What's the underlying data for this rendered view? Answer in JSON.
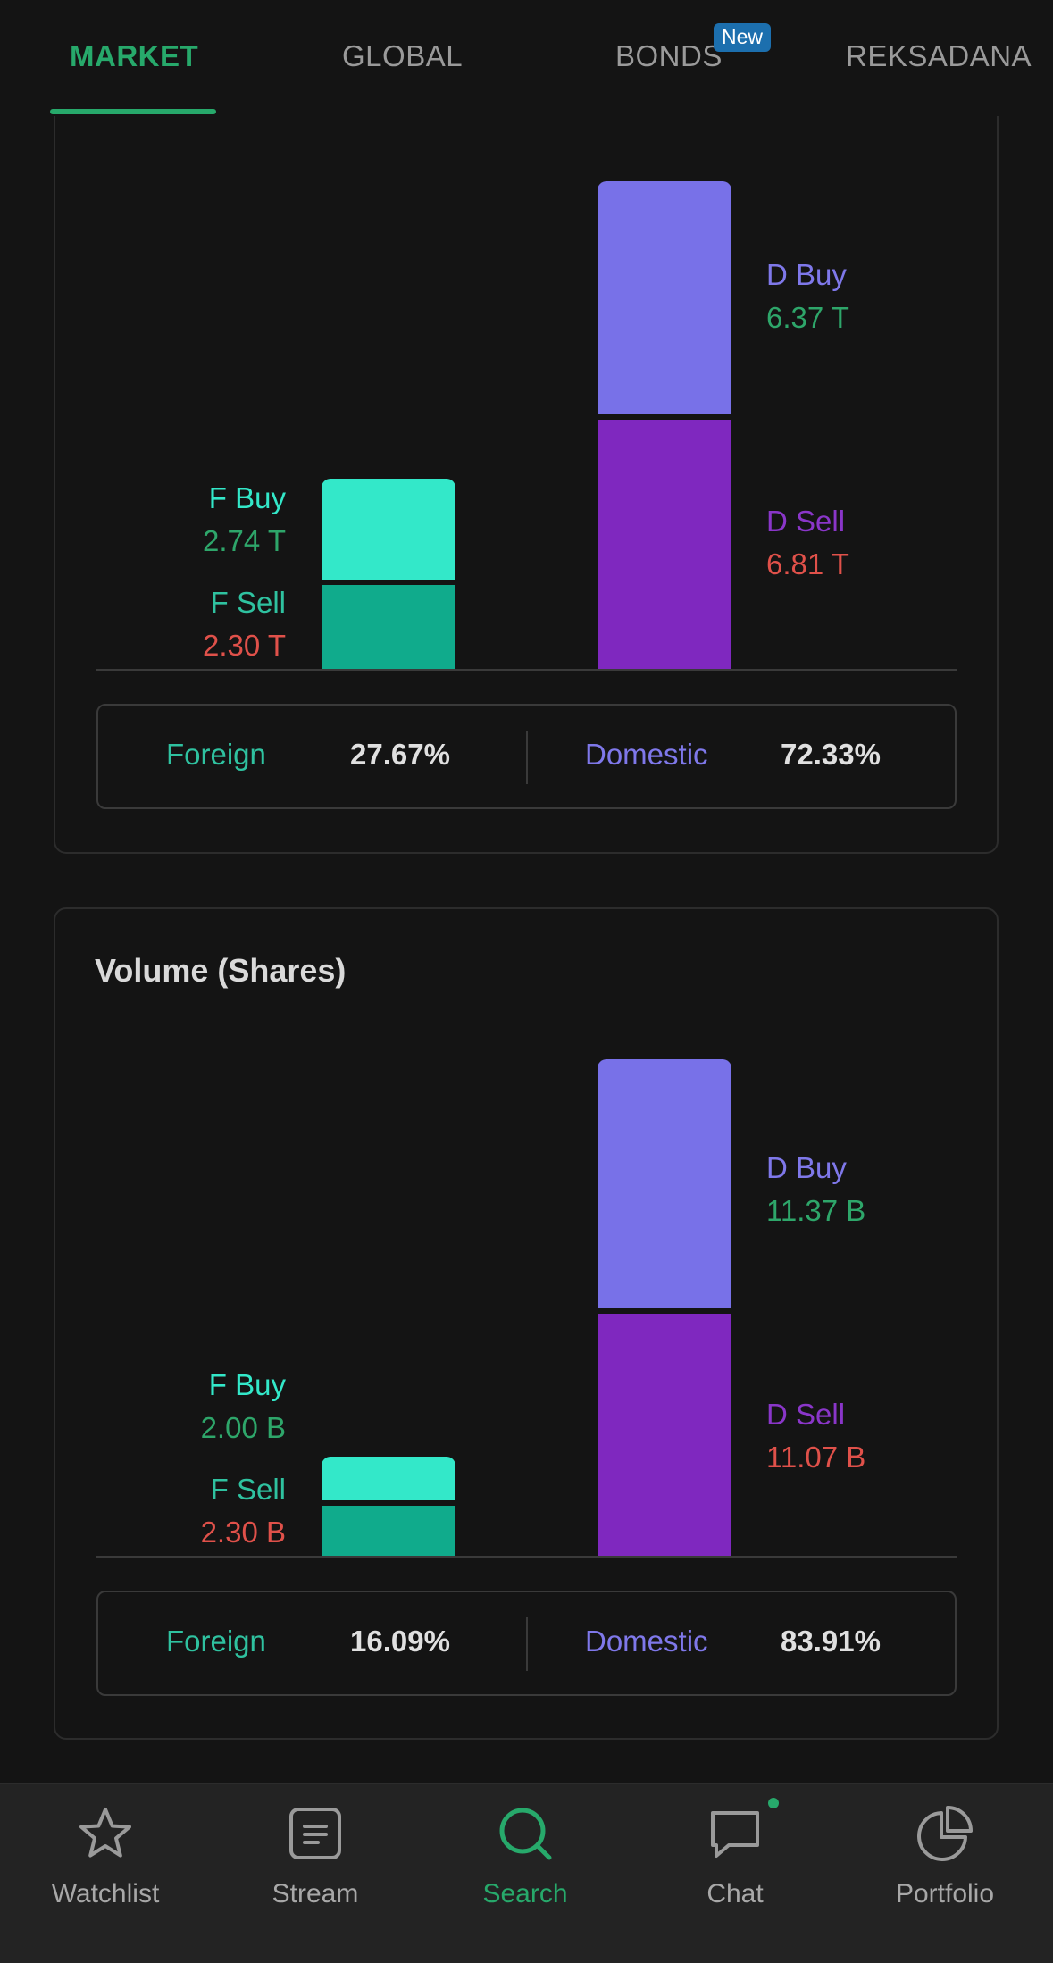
{
  "tabs": [
    {
      "label": "MARKET",
      "active": true
    },
    {
      "label": "GLOBAL",
      "active": false
    },
    {
      "label": "BONDS",
      "active": false,
      "badge": "New"
    },
    {
      "label": "REKSADANA",
      "active": false
    }
  ],
  "value_section": {
    "chart_data": {
      "type": "bar",
      "stacked": true,
      "categories": [
        "Foreign",
        "Domestic"
      ],
      "series": [
        {
          "name": "F Buy",
          "category": "Foreign",
          "value": 2.74,
          "label": "2.74 T"
        },
        {
          "name": "F Sell",
          "category": "Foreign",
          "value": 2.3,
          "label": "2.30 T"
        },
        {
          "name": "D Buy",
          "category": "Domestic",
          "value": 6.37,
          "label": "6.37 T"
        },
        {
          "name": "D Sell",
          "category": "Domestic",
          "value": 6.81,
          "label": "6.81 T"
        }
      ]
    },
    "summary": {
      "foreign_label": "Foreign",
      "foreign_value": "27.67%",
      "domestic_label": "Domestic",
      "domestic_value": "72.33%"
    }
  },
  "volume_section": {
    "title": "Volume (Shares)",
    "chart_data": {
      "type": "bar",
      "stacked": true,
      "title": "Volume (Shares)",
      "categories": [
        "Foreign",
        "Domestic"
      ],
      "series": [
        {
          "name": "F Buy",
          "category": "Foreign",
          "value": 2.0,
          "label": "2.00 B"
        },
        {
          "name": "F Sell",
          "category": "Foreign",
          "value": 2.3,
          "label": "2.30 B"
        },
        {
          "name": "D Buy",
          "category": "Domestic",
          "value": 11.37,
          "label": "11.37 B"
        },
        {
          "name": "D Sell",
          "category": "Domestic",
          "value": 11.07,
          "label": "11.07 B"
        }
      ]
    },
    "summary": {
      "foreign_label": "Foreign",
      "foreign_value": "16.09%",
      "domestic_label": "Domestic",
      "domestic_value": "83.91%"
    }
  },
  "colors": {
    "accent": "#27a96b",
    "f_buy": "#33e8c9",
    "f_sell": "#10ab8c",
    "d_buy": "#7871e8",
    "d_sell": "#7f28bf",
    "positive": "#2ea66a",
    "negative": "#e0514a"
  },
  "bottom_nav": [
    {
      "label": "Watchlist",
      "icon": "star-icon",
      "active": false
    },
    {
      "label": "Stream",
      "icon": "stream-icon",
      "active": false
    },
    {
      "label": "Search",
      "icon": "search-icon",
      "active": true
    },
    {
      "label": "Chat",
      "icon": "chat-icon",
      "active": false,
      "notification": true
    },
    {
      "label": "Portfolio",
      "icon": "pie-chart-icon",
      "active": false
    }
  ]
}
